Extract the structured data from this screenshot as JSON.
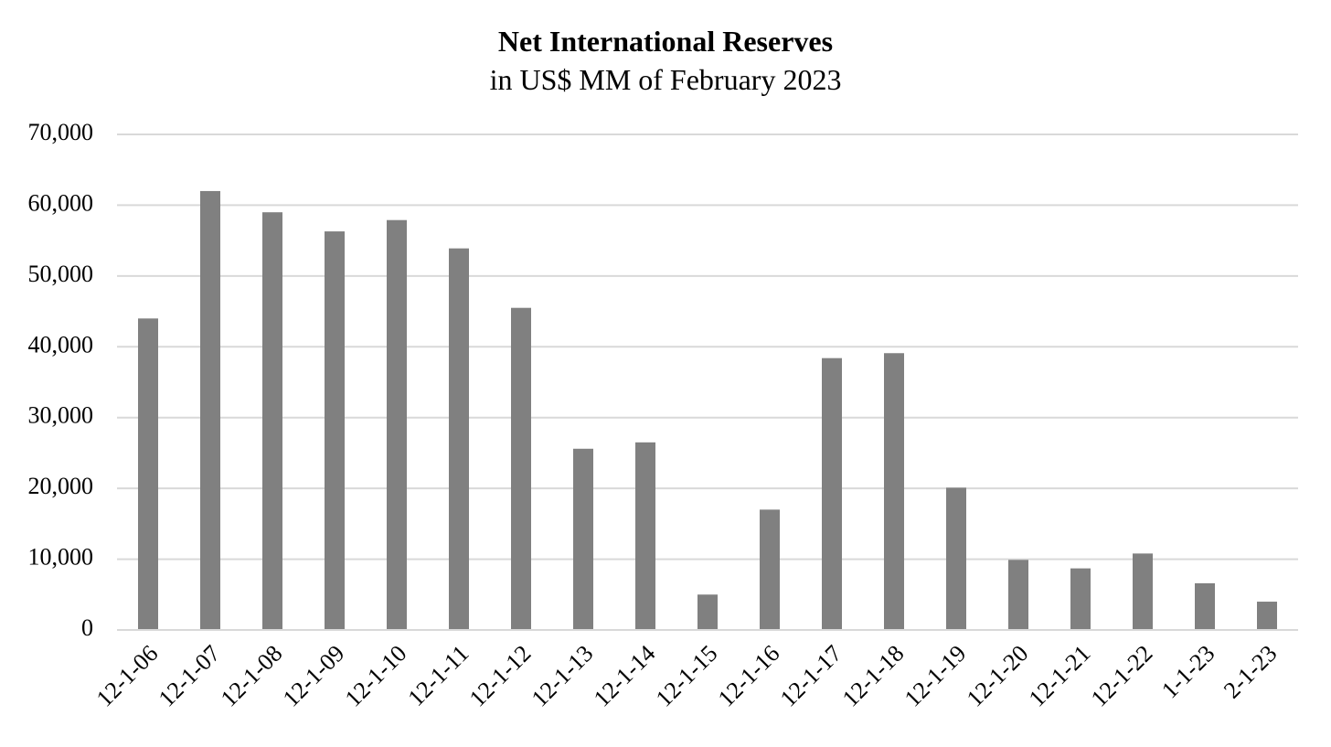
{
  "chart_data": {
    "type": "bar",
    "title": "Net International Reserves",
    "subtitle": "in US$ MM of February 2023",
    "categories": [
      "12-1-06",
      "12-1-07",
      "12-1-08",
      "12-1-09",
      "12-1-10",
      "12-1-11",
      "12-1-12",
      "12-1-13",
      "12-1-14",
      "12-1-15",
      "12-1-16",
      "12-1-17",
      "12-1-18",
      "12-1-19",
      "12-1-20",
      "12-1-21",
      "12-1-22",
      "1-1-23",
      "2-1-23"
    ],
    "values": [
      44000,
      62000,
      59000,
      56300,
      57900,
      53900,
      45500,
      25600,
      26500,
      5000,
      17000,
      38400,
      39100,
      20100,
      9900,
      8700,
      10800,
      6600,
      4000
    ],
    "color": "#808080",
    "ylim": [
      0,
      70000
    ],
    "yticks": [
      0,
      {
        "value": 10000,
        "label": "10,000"
      },
      {
        "value": 20000,
        "label": "20,000"
      },
      {
        "value": 30000,
        "label": "30,000"
      },
      {
        "value": 40000,
        "label": "40,000"
      },
      {
        "value": 50000,
        "label": "50,000"
      },
      {
        "value": 60000,
        "label": "60,000"
      },
      {
        "value": 70000,
        "label": "70,000"
      }
    ],
    "grid": true
  }
}
